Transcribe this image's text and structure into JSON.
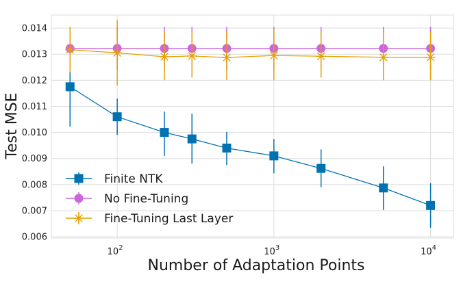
{
  "chart_data": {
    "type": "line",
    "xscale": "log",
    "xlabel": "Number of Adaptation Points",
    "ylabel": "Test MSE",
    "xlim": [
      38,
      14000
    ],
    "ylim": [
      0.00595,
      0.0145
    ],
    "xticks": [
      {
        "value": 100,
        "base": "10",
        "exp": "2"
      },
      {
        "value": 1000,
        "base": "10",
        "exp": "3"
      },
      {
        "value": 10000,
        "base": "10",
        "exp": "4"
      }
    ],
    "yticks": [
      0.006,
      0.007,
      0.008,
      0.009,
      0.01,
      0.011,
      0.012,
      0.013,
      0.014
    ],
    "ytick_labels": [
      "0.006",
      "0.007",
      "0.008",
      "0.009",
      "0.010",
      "0.011",
      "0.012",
      "0.013",
      "0.014"
    ],
    "grid": true,
    "legend_position": "lower-left",
    "x": [
      50,
      100,
      200,
      300,
      500,
      1000,
      2000,
      5000,
      10000
    ],
    "series": [
      {
        "name": "Finite NTK",
        "color": "#0072b2",
        "marker": "square",
        "values": [
          0.01175,
          0.0106,
          0.01,
          0.00975,
          0.0094,
          0.0091,
          0.00862,
          0.00787,
          0.0072
        ],
        "err_low": [
          0.01022,
          0.0099,
          0.0091,
          0.0088,
          0.00875,
          0.00843,
          0.0079,
          0.00703,
          0.00635
        ],
        "err_high": [
          0.01322,
          0.0113,
          0.0108,
          0.01072,
          0.01002,
          0.00975,
          0.00935,
          0.0087,
          0.00805
        ]
      },
      {
        "name": "No Fine-Tuning",
        "color": "#cc66dd",
        "marker": "circle",
        "values": [
          0.01322,
          0.01322,
          0.01322,
          0.01322,
          0.01322,
          0.01322,
          0.01322,
          0.01322,
          0.01322
        ],
        "err_low": [
          0.0124,
          0.0124,
          0.0124,
          0.0124,
          0.0124,
          0.0124,
          0.0124,
          0.0124,
          0.0124
        ],
        "err_high": [
          0.01405,
          0.01405,
          0.01405,
          0.01405,
          0.01405,
          0.01405,
          0.01405,
          0.01405,
          0.01405
        ]
      },
      {
        "name": "Fine-Tuning Last Layer",
        "color": "#e69f00",
        "marker": "x",
        "values": [
          0.01317,
          0.01305,
          0.0129,
          0.01293,
          0.01287,
          0.01295,
          0.01292,
          0.01288,
          0.01288
        ],
        "err_low": [
          0.0123,
          0.0118,
          0.012,
          0.0121,
          0.012,
          0.012,
          0.0121,
          0.012,
          0.012
        ],
        "err_high": [
          0.01405,
          0.01432,
          0.01385,
          0.01385,
          0.01385,
          0.01395,
          0.01385,
          0.01385,
          0.01385
        ]
      }
    ]
  }
}
